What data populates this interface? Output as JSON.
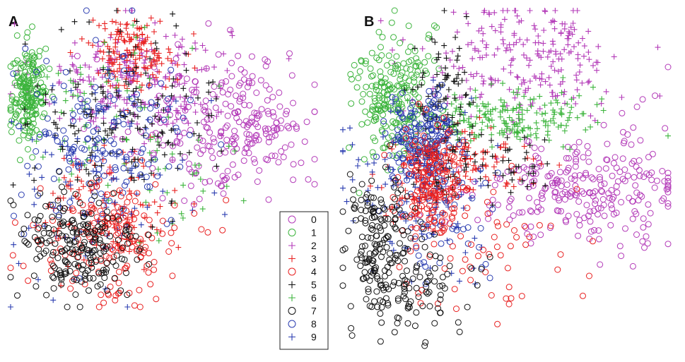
{
  "chart_data": [
    {
      "type": "scatter",
      "panel_label": "A",
      "grid": false,
      "series": [
        {
          "label": "0",
          "clusters": [
            {
              "cx": 0.78,
              "cy": 0.62,
              "sx": 0.12,
              "sy": 0.12,
              "n": 200
            },
            {
              "cx": 0.55,
              "cy": 0.6,
              "sx": 0.18,
              "sy": 0.13,
              "n": 60
            }
          ]
        },
        {
          "label": "1",
          "clusters": [
            {
              "cx": 0.06,
              "cy": 0.72,
              "sx": 0.03,
              "sy": 0.08,
              "n": 200
            }
          ]
        },
        {
          "label": "2",
          "clusters": [
            {
              "cx": 0.4,
              "cy": 0.76,
              "sx": 0.16,
              "sy": 0.1,
              "n": 220
            }
          ]
        },
        {
          "label": "3",
          "clusters": [
            {
              "cx": 0.4,
              "cy": 0.86,
              "sx": 0.07,
              "sy": 0.06,
              "n": 160
            },
            {
              "cx": 0.32,
              "cy": 0.32,
              "sx": 0.1,
              "sy": 0.1,
              "n": 140
            }
          ]
        },
        {
          "label": "4",
          "clusters": [
            {
              "cx": 0.33,
              "cy": 0.22,
              "sx": 0.12,
              "sy": 0.1,
              "n": 160
            }
          ]
        },
        {
          "label": "5",
          "clusters": [
            {
              "cx": 0.38,
              "cy": 0.65,
              "sx": 0.15,
              "sy": 0.14,
              "n": 160
            }
          ]
        },
        {
          "label": "6",
          "clusters": [
            {
              "cx": 0.3,
              "cy": 0.62,
              "sx": 0.15,
              "sy": 0.14,
              "n": 70
            },
            {
              "cx": 0.6,
              "cy": 0.4,
              "sx": 0.08,
              "sy": 0.08,
              "n": 20
            }
          ]
        },
        {
          "label": "7",
          "clusters": [
            {
              "cx": 0.22,
              "cy": 0.2,
              "sx": 0.1,
              "sy": 0.1,
              "n": 220
            }
          ]
        },
        {
          "label": "8",
          "clusters": [
            {
              "cx": 0.3,
              "cy": 0.55,
              "sx": 0.15,
              "sy": 0.15,
              "n": 150
            }
          ]
        },
        {
          "label": "9",
          "clusters": [
            {
              "cx": 0.3,
              "cy": 0.45,
              "sx": 0.15,
              "sy": 0.17,
              "n": 110
            }
          ]
        }
      ]
    },
    {
      "type": "scatter",
      "panel_label": "B",
      "grid": false,
      "series": [
        {
          "label": "0",
          "clusters": [
            {
              "cx": 0.72,
              "cy": 0.46,
              "sx": 0.16,
              "sy": 0.07,
              "n": 220
            },
            {
              "cx": 0.9,
              "cy": 0.5,
              "sx": 0.06,
              "sy": 0.12,
              "n": 50
            }
          ]
        },
        {
          "label": "1",
          "clusters": [
            {
              "cx": 0.15,
              "cy": 0.75,
              "sx": 0.06,
              "sy": 0.1,
              "n": 220
            }
          ]
        },
        {
          "label": "2",
          "clusters": [
            {
              "cx": 0.55,
              "cy": 0.85,
              "sx": 0.16,
              "sy": 0.09,
              "n": 230
            }
          ]
        },
        {
          "label": "3",
          "clusters": [
            {
              "cx": 0.35,
              "cy": 0.56,
              "sx": 0.1,
              "sy": 0.05,
              "n": 130
            },
            {
              "cx": 0.25,
              "cy": 0.47,
              "sx": 0.05,
              "sy": 0.07,
              "n": 80
            }
          ]
        },
        {
          "label": "4",
          "clusters": [
            {
              "cx": 0.27,
              "cy": 0.5,
              "sx": 0.05,
              "sy": 0.08,
              "n": 160
            },
            {
              "cx": 0.45,
              "cy": 0.3,
              "sx": 0.12,
              "sy": 0.1,
              "n": 60
            }
          ]
        },
        {
          "label": "5",
          "clusters": [
            {
              "cx": 0.3,
              "cy": 0.72,
              "sx": 0.04,
              "sy": 0.12,
              "n": 100
            },
            {
              "cx": 0.42,
              "cy": 0.54,
              "sx": 0.12,
              "sy": 0.05,
              "n": 70
            }
          ]
        },
        {
          "label": "6",
          "clusters": [
            {
              "cx": 0.5,
              "cy": 0.68,
              "sx": 0.14,
              "sy": 0.04,
              "n": 200
            }
          ]
        },
        {
          "label": "7",
          "clusters": [
            {
              "cx": 0.12,
              "cy": 0.3,
              "sx": 0.06,
              "sy": 0.1,
              "n": 170
            },
            {
              "cx": 0.22,
              "cy": 0.18,
              "sx": 0.1,
              "sy": 0.08,
              "n": 80
            }
          ]
        },
        {
          "label": "8",
          "clusters": [
            {
              "cx": 0.25,
              "cy": 0.62,
              "sx": 0.05,
              "sy": 0.06,
              "n": 170
            },
            {
              "cx": 0.3,
              "cy": 0.4,
              "sx": 0.1,
              "sy": 0.1,
              "n": 60
            }
          ]
        },
        {
          "label": "9",
          "clusters": [
            {
              "cx": 0.25,
              "cy": 0.48,
              "sx": 0.12,
              "sy": 0.12,
              "n": 120
            }
          ]
        }
      ]
    }
  ],
  "legend": {
    "items": [
      {
        "label": "0",
        "marker": "circle",
        "color": "#b33ab8"
      },
      {
        "label": "1",
        "marker": "circle",
        "color": "#3cb43c"
      },
      {
        "label": "2",
        "marker": "plus",
        "color": "#b33ab8"
      },
      {
        "label": "3",
        "marker": "plus",
        "color": "#e82020"
      },
      {
        "label": "4",
        "marker": "circle",
        "color": "#e82020"
      },
      {
        "label": "5",
        "marker": "plus",
        "color": "#111111"
      },
      {
        "label": "6",
        "marker": "plus",
        "color": "#3cb43c"
      },
      {
        "label": "7",
        "marker": "circle",
        "color": "#111111"
      },
      {
        "label": "8",
        "marker": "circle",
        "color": "#2a3cb0"
      },
      {
        "label": "9",
        "marker": "plus",
        "color": "#2a3cb0"
      }
    ]
  },
  "draw_order": [
    "2",
    "0",
    "3",
    "1",
    "6",
    "5",
    "8",
    "9",
    "4",
    "7"
  ]
}
